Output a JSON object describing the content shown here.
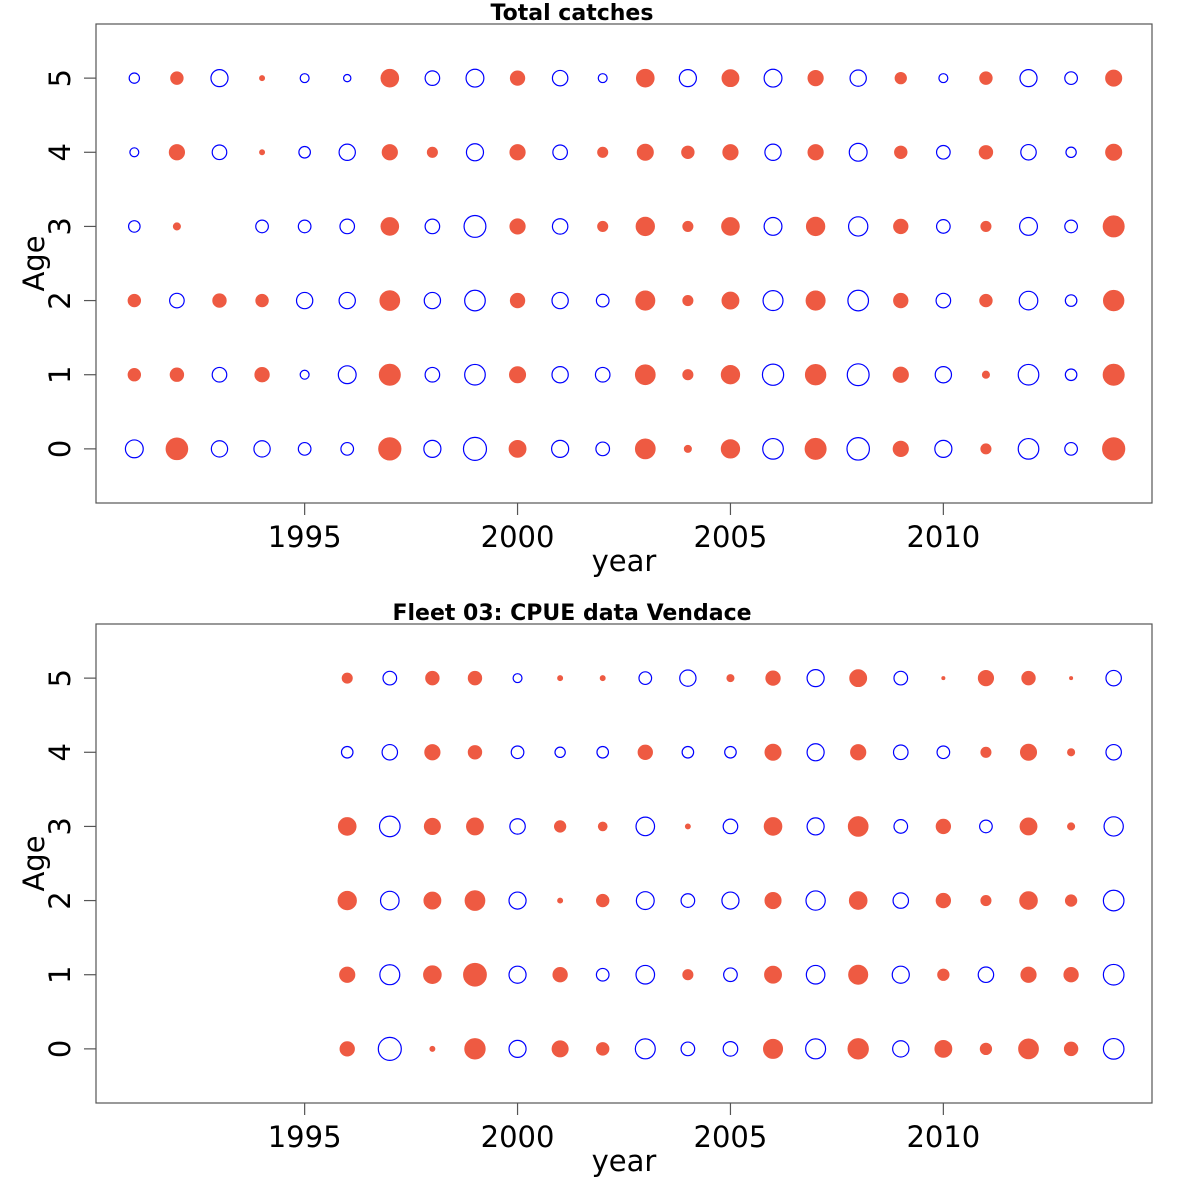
{
  "colors": {
    "negative": "#ee5a42",
    "positive": "#0000ff",
    "frame": "#555555"
  },
  "chart_data": [
    {
      "type": "bubble",
      "title": "Total catches",
      "xlabel": "year",
      "ylabel": "Age",
      "xlim": [
        1990.1,
        2014.9
      ],
      "ylim": [
        -0.73,
        5.73
      ],
      "xticks": [
        1995,
        2000,
        2005,
        2010
      ],
      "yticks": [
        0,
        1,
        2,
        3,
        4,
        5
      ],
      "x": [
        1991,
        1992,
        1993,
        1994,
        1995,
        1996,
        1997,
        1998,
        1999,
        2000,
        2001,
        2002,
        2003,
        2004,
        2005,
        2006,
        2007,
        2008,
        2009,
        2010,
        2011,
        2012,
        2013,
        2014
      ],
      "ages": [
        0,
        1,
        2,
        3,
        4,
        5
      ],
      "values": [
        [
          0.6,
          -0.9,
          0.5,
          0.5,
          0.3,
          0.3,
          -0.95,
          0.55,
          1.0,
          -0.55,
          0.55,
          0.35,
          -0.75,
          -0.1,
          -0.65,
          0.8,
          -0.85,
          0.95,
          -0.45,
          0.55,
          -0.2,
          0.8,
          0.3,
          -0.95
        ],
        [
          -0.3,
          -0.35,
          0.4,
          -0.4,
          0.15,
          0.6,
          -0.85,
          0.4,
          0.8,
          -0.5,
          0.5,
          0.4,
          -0.75,
          -0.2,
          -0.65,
          0.85,
          -0.8,
          0.9,
          -0.45,
          0.5,
          -0.1,
          0.8,
          0.25,
          -0.85
        ],
        [
          -0.3,
          0.4,
          -0.35,
          -0.3,
          0.5,
          0.5,
          -0.75,
          0.5,
          0.8,
          -0.4,
          0.5,
          0.3,
          -0.7,
          -0.2,
          -0.55,
          0.75,
          -0.7,
          0.8,
          -0.4,
          0.4,
          -0.3,
          0.65,
          0.25,
          -0.8
        ],
        [
          0.25,
          -0.1,
          0,
          0.3,
          0.3,
          0.4,
          -0.6,
          0.4,
          0.9,
          -0.45,
          0.45,
          -0.2,
          -0.65,
          -0.2,
          -0.6,
          0.6,
          -0.65,
          0.7,
          -0.4,
          0.35,
          -0.2,
          0.6,
          0.3,
          -0.85
        ],
        [
          0.15,
          -0.45,
          0.4,
          -0.05,
          0.25,
          0.5,
          -0.45,
          -0.2,
          0.55,
          -0.45,
          0.4,
          -0.2,
          -0.5,
          -0.3,
          -0.45,
          0.5,
          -0.45,
          0.6,
          -0.3,
          0.35,
          -0.35,
          0.45,
          0.2,
          -0.5
        ],
        [
          0.2,
          -0.3,
          0.55,
          -0.05,
          0.15,
          0.1,
          -0.6,
          0.4,
          0.6,
          -0.4,
          0.45,
          0.15,
          -0.6,
          0.55,
          -0.55,
          0.6,
          -0.45,
          0.5,
          -0.25,
          0.15,
          -0.3,
          0.55,
          0.3,
          -0.5
        ]
      ]
    },
    {
      "type": "bubble",
      "title": "Fleet 03:  CPUE data Vendace",
      "xlabel": "year",
      "ylabel": "Age",
      "xlim": [
        1990.1,
        2014.9
      ],
      "ylim": [
        -0.73,
        5.73
      ],
      "xticks": [
        1995,
        2000,
        2005,
        2010
      ],
      "yticks": [
        0,
        1,
        2,
        3,
        4,
        5
      ],
      "x": [
        1996,
        1997,
        1998,
        1999,
        2000,
        2001,
        2002,
        2003,
        2004,
        2005,
        2006,
        2007,
        2008,
        2009,
        2010,
        2011,
        2012,
        2013,
        2014
      ],
      "ages": [
        0,
        1,
        2,
        3,
        4,
        5
      ],
      "values": [
        [
          -0.4,
          1.0,
          -0.05,
          -0.8,
          0.55,
          -0.5,
          -0.3,
          0.75,
          0.35,
          0.4,
          -0.7,
          0.75,
          -0.8,
          0.5,
          -0.55,
          -0.25,
          -0.75,
          -0.35,
          0.8
        ],
        [
          -0.45,
          0.75,
          -0.6,
          -1.0,
          0.55,
          -0.4,
          0.3,
          0.65,
          -0.2,
          0.35,
          -0.55,
          0.65,
          -0.7,
          0.55,
          -0.25,
          0.45,
          -0.45,
          -0.4,
          0.8
        ],
        [
          -0.65,
          0.65,
          -0.55,
          -0.75,
          0.55,
          -0.05,
          -0.3,
          0.6,
          0.35,
          0.55,
          -0.5,
          0.7,
          -0.6,
          0.45,
          -0.4,
          -0.2,
          -0.6,
          -0.25,
          0.8
        ],
        [
          -0.6,
          0.8,
          -0.5,
          -0.55,
          0.45,
          -0.25,
          -0.15,
          0.65,
          -0.05,
          0.4,
          -0.6,
          0.55,
          -0.75,
          0.35,
          -0.4,
          0.3,
          -0.55,
          -0.1,
          0.7
        ],
        [
          0.25,
          0.45,
          -0.45,
          -0.35,
          0.3,
          0.2,
          0.25,
          -0.4,
          0.25,
          0.25,
          -0.5,
          0.55,
          -0.45,
          0.4,
          0.3,
          -0.2,
          -0.5,
          -0.1,
          0.45
        ],
        [
          -0.2,
          0.35,
          -0.35,
          -0.35,
          0.15,
          -0.05,
          -0.05,
          0.3,
          0.5,
          -0.1,
          -0.4,
          0.55,
          -0.55,
          0.35,
          -0.02,
          -0.45,
          -0.35,
          -0.02,
          0.45
        ]
      ]
    }
  ]
}
